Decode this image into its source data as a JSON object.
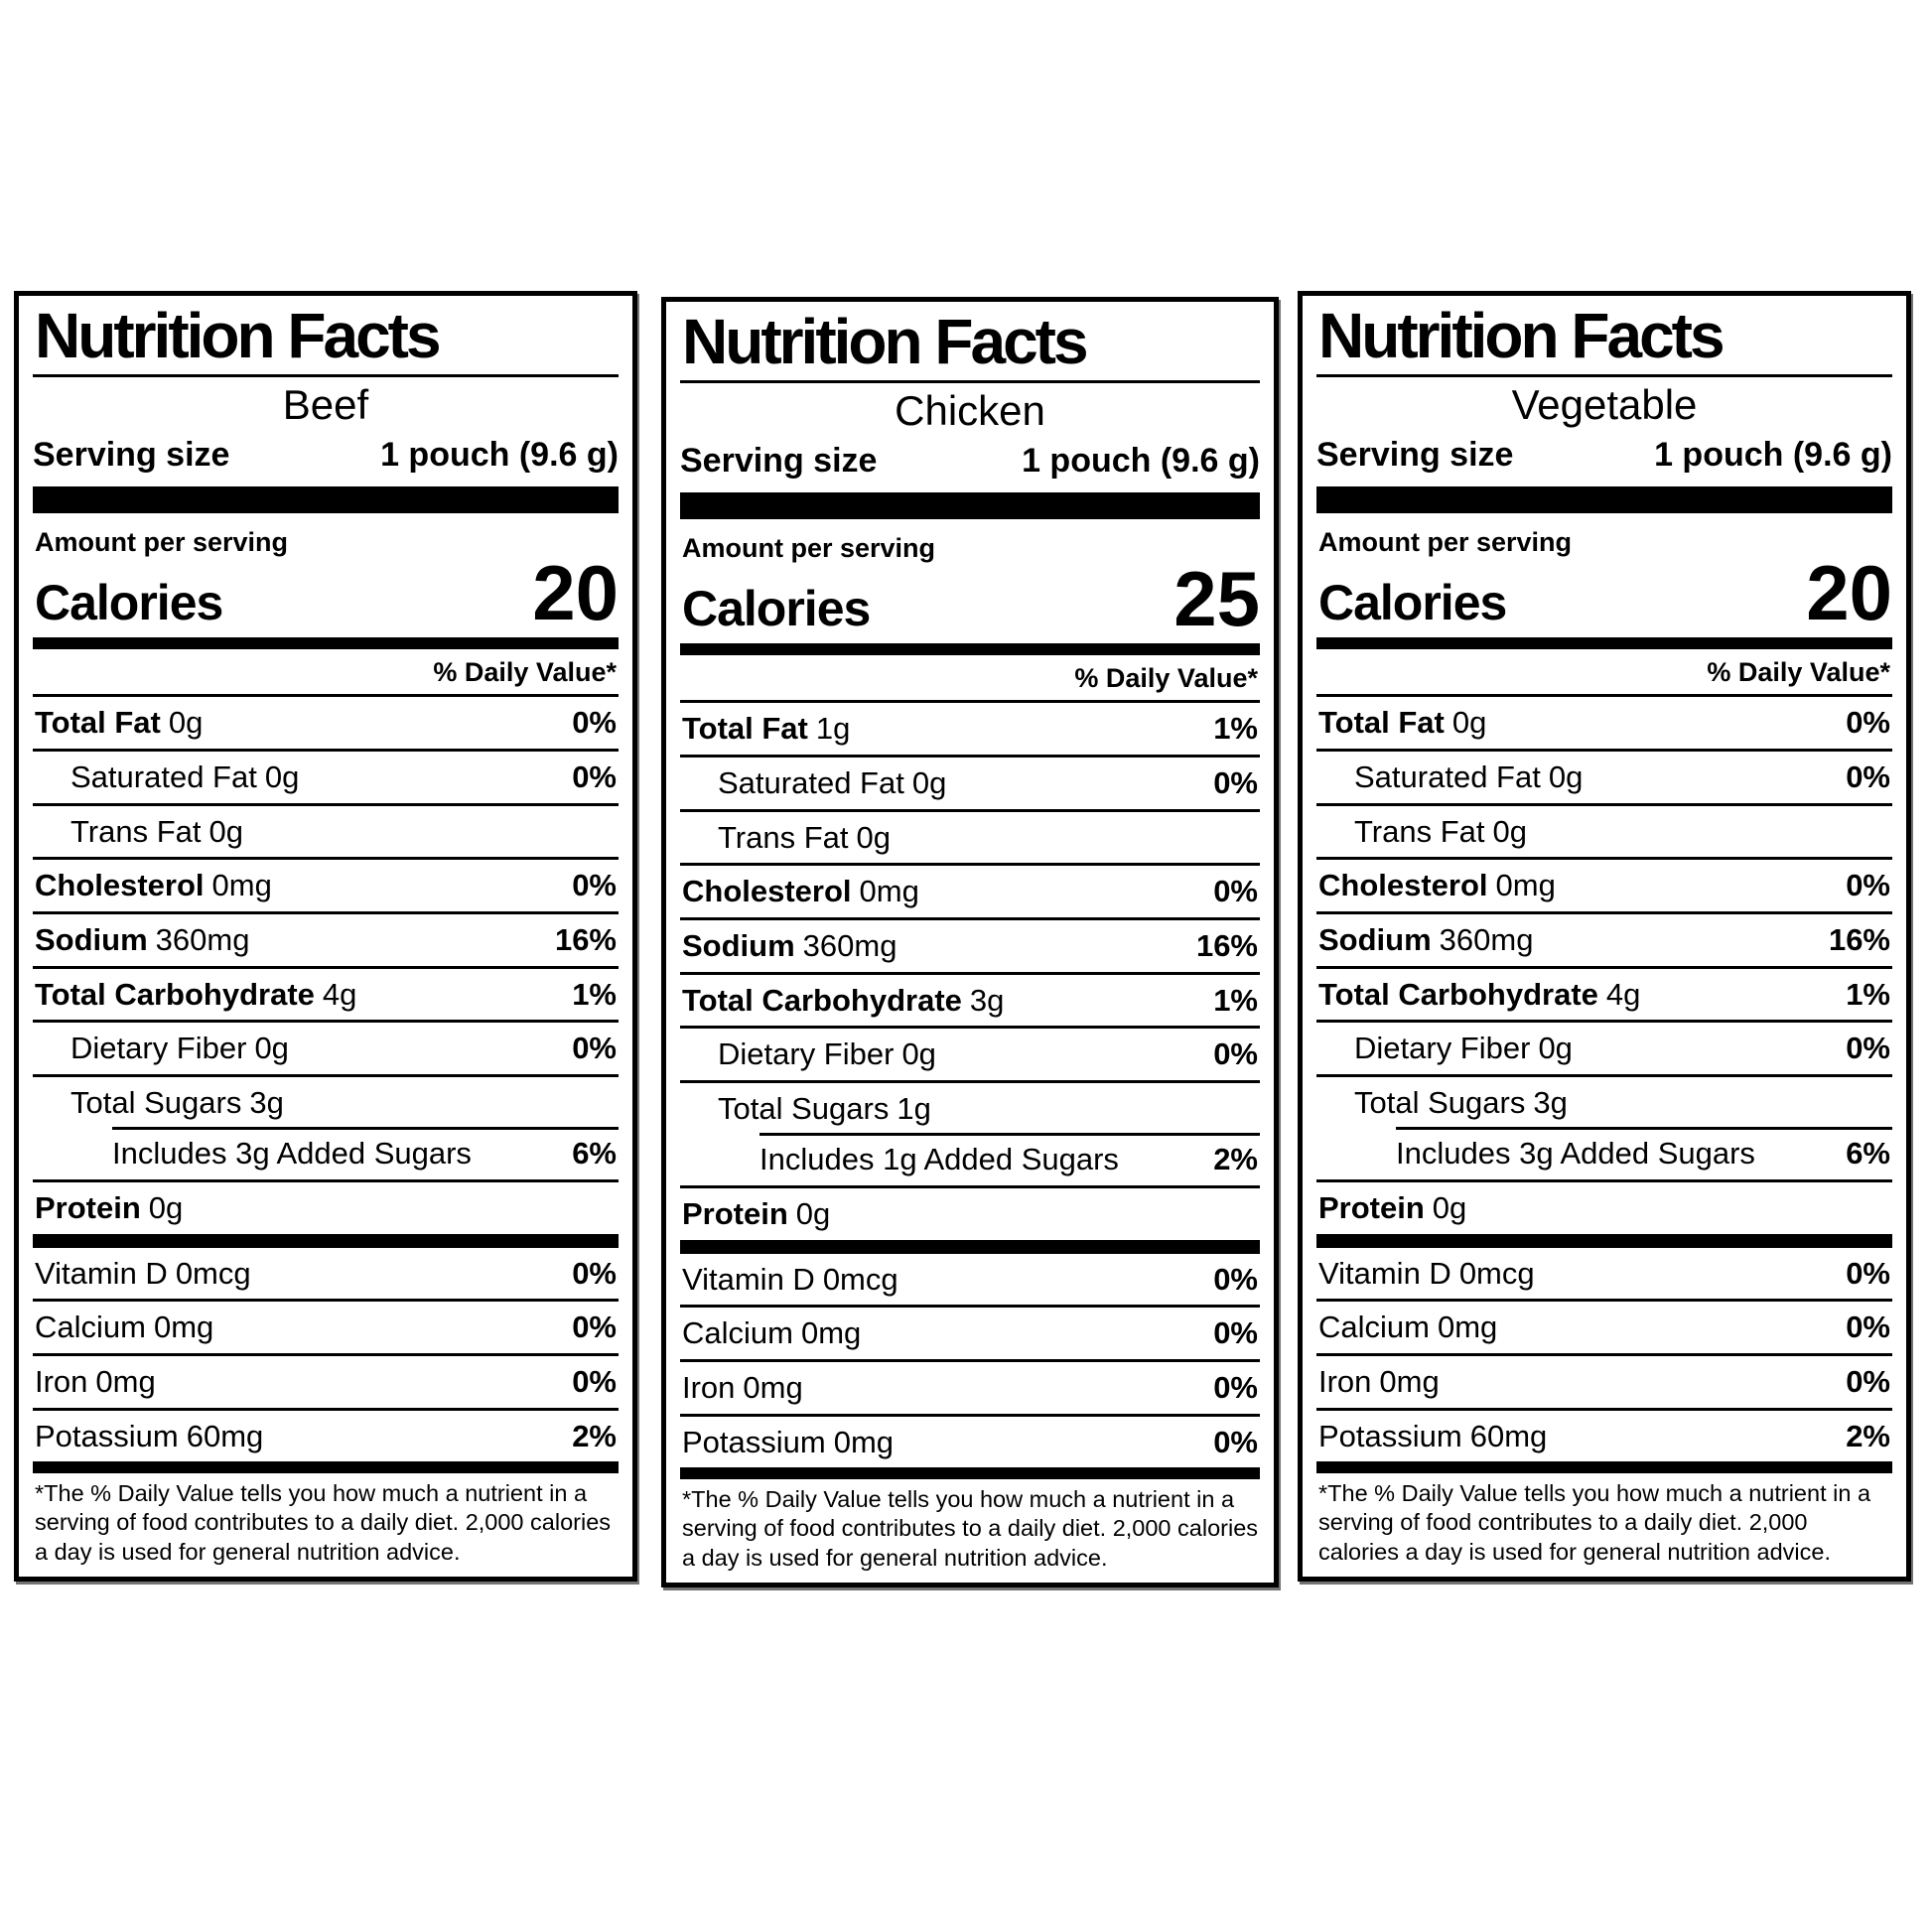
{
  "page": {
    "background": "#ffffff",
    "text_color": "#000000"
  },
  "labels": [
    {
      "title": "Nutrition Facts",
      "variant": "Beef",
      "serving_size_label": "Serving size",
      "serving_size_value": "1 pouch (9.6 g)",
      "amount_per_serving": "Amount per serving",
      "calories_label": "Calories",
      "calories_value": "20",
      "daily_value_header": "% Daily Value*",
      "rows": [
        {
          "name": "Total Fat",
          "amount": "0g",
          "dv": "0%",
          "indent": 0,
          "bold": true
        },
        {
          "name": "Saturated Fat",
          "amount": "0g",
          "dv": "0%",
          "indent": 1,
          "bold": false
        },
        {
          "name": "Trans Fat",
          "amount": "0g",
          "dv": "",
          "indent": 1,
          "bold": false
        },
        {
          "name": "Cholesterol",
          "amount": "0mg",
          "dv": "0%",
          "indent": 0,
          "bold": true
        },
        {
          "name": "Sodium",
          "amount": "360mg",
          "dv": "16%",
          "indent": 0,
          "bold": true
        },
        {
          "name": "Total Carbohydrate",
          "amount": "4g",
          "dv": "1%",
          "indent": 0,
          "bold": true
        },
        {
          "name": "Dietary Fiber",
          "amount": "0g",
          "dv": "0%",
          "indent": 1,
          "bold": false
        },
        {
          "name": "Total Sugars",
          "amount": "3g",
          "dv": "",
          "indent": 1,
          "bold": false
        },
        {
          "name": "Includes 3g Added Sugars",
          "amount": "",
          "dv": "6%",
          "indent": 2,
          "bold": false,
          "sub": true
        },
        {
          "name": "Protein",
          "amount": "0g",
          "dv": "",
          "indent": 0,
          "bold": true
        }
      ],
      "micros": [
        {
          "name": "Vitamin D",
          "amount": "0mcg",
          "dv": "0%",
          "indent": 0,
          "bold": false
        },
        {
          "name": "Calcium",
          "amount": "0mg",
          "dv": "0%",
          "indent": 0,
          "bold": false
        },
        {
          "name": "Iron",
          "amount": "0mg",
          "dv": "0%",
          "indent": 0,
          "bold": false
        },
        {
          "name": "Potassium",
          "amount": "60mg",
          "dv": "2%",
          "indent": 0,
          "bold": false
        }
      ],
      "footnote": "*The % Daily Value tells you how much a nutrient in a serving of food contributes to a daily diet. 2,000 calories a day is used for general nutrition advice."
    },
    {
      "title": "Nutrition Facts",
      "variant": "Chicken",
      "serving_size_label": "Serving size",
      "serving_size_value": "1 pouch (9.6 g)",
      "amount_per_serving": "Amount per serving",
      "calories_label": "Calories",
      "calories_value": "25",
      "daily_value_header": "% Daily Value*",
      "rows": [
        {
          "name": "Total Fat",
          "amount": "1g",
          "dv": "1%",
          "indent": 0,
          "bold": true
        },
        {
          "name": "Saturated Fat",
          "amount": "0g",
          "dv": "0%",
          "indent": 1,
          "bold": false
        },
        {
          "name": "Trans Fat",
          "amount": "0g",
          "dv": "",
          "indent": 1,
          "bold": false
        },
        {
          "name": "Cholesterol",
          "amount": "0mg",
          "dv": "0%",
          "indent": 0,
          "bold": true
        },
        {
          "name": "Sodium",
          "amount": "360mg",
          "dv": "16%",
          "indent": 0,
          "bold": true
        },
        {
          "name": "Total Carbohydrate",
          "amount": "3g",
          "dv": "1%",
          "indent": 0,
          "bold": true
        },
        {
          "name": "Dietary Fiber",
          "amount": "0g",
          "dv": "0%",
          "indent": 1,
          "bold": false
        },
        {
          "name": "Total Sugars",
          "amount": "1g",
          "dv": "",
          "indent": 1,
          "bold": false
        },
        {
          "name": "Includes 1g Added Sugars",
          "amount": "",
          "dv": "2%",
          "indent": 2,
          "bold": false,
          "sub": true
        },
        {
          "name": "Protein",
          "amount": "0g",
          "dv": "",
          "indent": 0,
          "bold": true
        }
      ],
      "micros": [
        {
          "name": "Vitamin D",
          "amount": "0mcg",
          "dv": "0%",
          "indent": 0,
          "bold": false
        },
        {
          "name": "Calcium",
          "amount": "0mg",
          "dv": "0%",
          "indent": 0,
          "bold": false
        },
        {
          "name": "Iron",
          "amount": "0mg",
          "dv": "0%",
          "indent": 0,
          "bold": false
        },
        {
          "name": "Potassium",
          "amount": "0mg",
          "dv": "0%",
          "indent": 0,
          "bold": false
        }
      ],
      "footnote": "*The % Daily Value tells you how much a nutrient in a serving of food contributes to a daily diet. 2,000 calories a day is used for general nutrition advice."
    },
    {
      "title": "Nutrition Facts",
      "variant": "Vegetable",
      "serving_size_label": "Serving size",
      "serving_size_value": "1 pouch (9.6 g)",
      "amount_per_serving": "Amount per serving",
      "calories_label": "Calories",
      "calories_value": "20",
      "daily_value_header": "% Daily Value*",
      "rows": [
        {
          "name": "Total Fat",
          "amount": "0g",
          "dv": "0%",
          "indent": 0,
          "bold": true
        },
        {
          "name": "Saturated Fat",
          "amount": "0g",
          "dv": "0%",
          "indent": 1,
          "bold": false
        },
        {
          "name": "Trans Fat",
          "amount": "0g",
          "dv": "",
          "indent": 1,
          "bold": false
        },
        {
          "name": "Cholesterol",
          "amount": "0mg",
          "dv": "0%",
          "indent": 0,
          "bold": true
        },
        {
          "name": "Sodium",
          "amount": "360mg",
          "dv": "16%",
          "indent": 0,
          "bold": true
        },
        {
          "name": "Total Carbohydrate",
          "amount": "4g",
          "dv": "1%",
          "indent": 0,
          "bold": true
        },
        {
          "name": "Dietary Fiber",
          "amount": "0g",
          "dv": "0%",
          "indent": 1,
          "bold": false
        },
        {
          "name": "Total Sugars",
          "amount": "3g",
          "dv": "",
          "indent": 1,
          "bold": false
        },
        {
          "name": "Includes 3g Added Sugars",
          "amount": "",
          "dv": "6%",
          "indent": 2,
          "bold": false,
          "sub": true
        },
        {
          "name": "Protein",
          "amount": "0g",
          "dv": "",
          "indent": 0,
          "bold": true
        }
      ],
      "micros": [
        {
          "name": "Vitamin D",
          "amount": "0mcg",
          "dv": "0%",
          "indent": 0,
          "bold": false
        },
        {
          "name": "Calcium",
          "amount": "0mg",
          "dv": "0%",
          "indent": 0,
          "bold": false
        },
        {
          "name": "Iron",
          "amount": "0mg",
          "dv": "0%",
          "indent": 0,
          "bold": false
        },
        {
          "name": "Potassium",
          "amount": "60mg",
          "dv": "2%",
          "indent": 0,
          "bold": false
        }
      ],
      "footnote": "*The % Daily Value tells you how much a nutrient in a serving of food contributes to a daily diet. 2,000 calories a day is used for general nutrition advice."
    }
  ]
}
